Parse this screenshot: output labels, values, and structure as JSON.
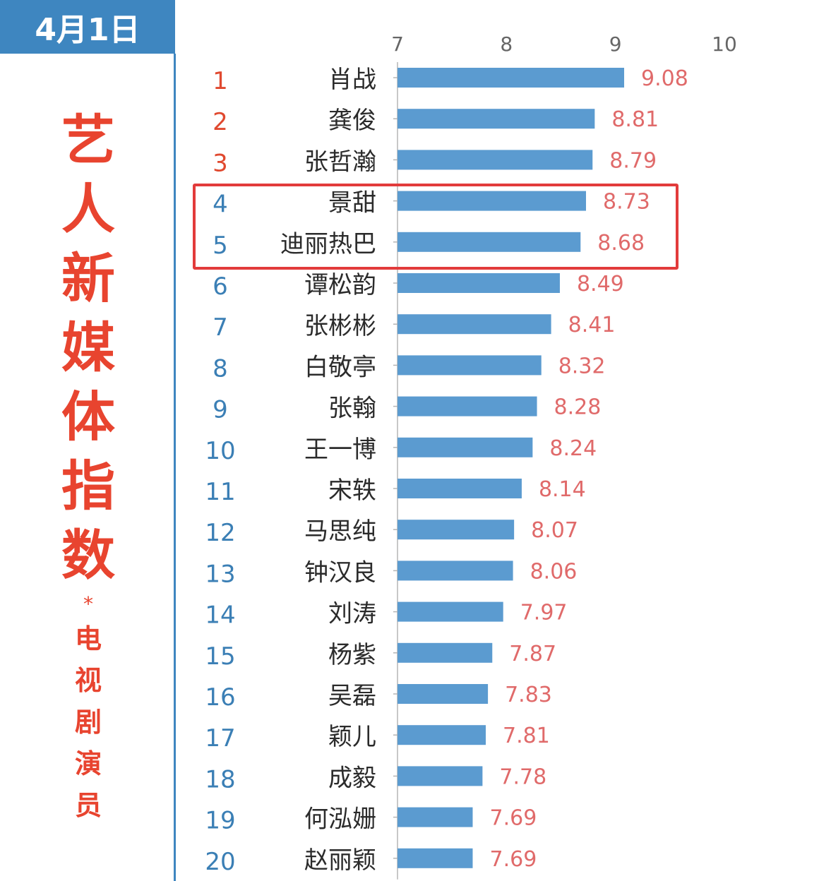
{
  "date_tab": "4月1日",
  "side_title": {
    "main_chars": [
      "艺",
      "人",
      "新",
      "媒",
      "体",
      "指",
      "数"
    ],
    "separator": "*",
    "sub_chars": [
      "电",
      "视",
      "剧",
      "演",
      "员"
    ]
  },
  "colors": {
    "accent_blue": "#3e86c0",
    "bar": "#5b9bd0",
    "value_label": "#e06a6a",
    "rank_top3": "#e0492f",
    "rank_other": "#3b7fb5",
    "title_red": "#e8442f",
    "highlight_box": "#e23b3b"
  },
  "highlight": {
    "ranks": [
      4,
      5
    ]
  },
  "chart_data": {
    "type": "bar",
    "orientation": "horizontal",
    "x_ticks": [
      7,
      8,
      9,
      10
    ],
    "xlim": [
      7,
      10
    ],
    "grid": false,
    "ranks": [
      "1",
      "2",
      "3",
      "4",
      "5",
      "6",
      "7",
      "8",
      "9",
      "10",
      "11",
      "12",
      "13",
      "14",
      "15",
      "16",
      "17",
      "18",
      "19",
      "20"
    ],
    "categories": [
      "肖战",
      "龚俊",
      "张哲瀚",
      "景甜",
      "迪丽热巴",
      "谭松韵",
      "张彬彬",
      "白敬亭",
      "张翰",
      "王一博",
      "宋轶",
      "马思纯",
      "钟汉良",
      "刘涛",
      "杨紫",
      "吴磊",
      "颖儿",
      "成毅",
      "何泓姗",
      "赵丽颖"
    ],
    "values": [
      9.08,
      8.81,
      8.79,
      8.73,
      8.68,
      8.49,
      8.41,
      8.32,
      8.28,
      8.24,
      8.14,
      8.07,
      8.06,
      7.97,
      7.87,
      7.83,
      7.81,
      7.78,
      7.69,
      7.69
    ],
    "value_labels": [
      "9.08",
      "8.81",
      "8.79",
      "8.73",
      "8.68",
      "8.49",
      "8.41",
      "8.32",
      "8.28",
      "8.24",
      "8.14",
      "8.07",
      "8.06",
      "7.97",
      "7.87",
      "7.83",
      "7.81",
      "7.78",
      "7.69",
      "7.69"
    ]
  }
}
